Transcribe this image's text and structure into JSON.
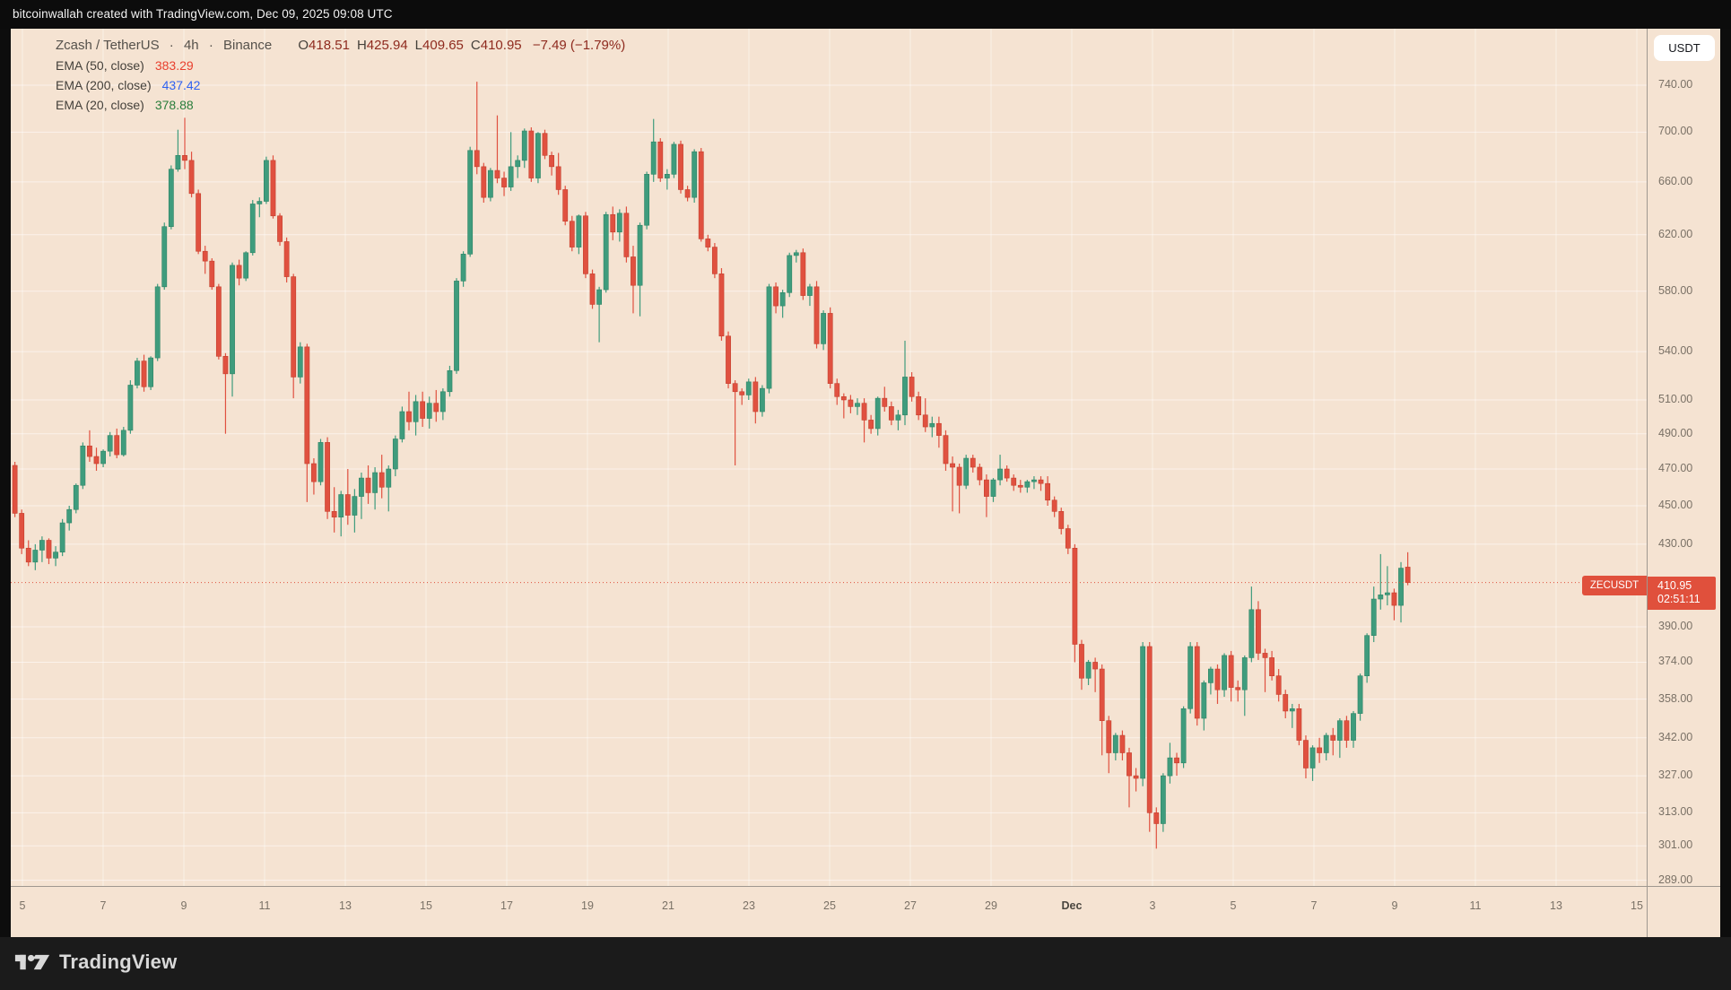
{
  "attribution": {
    "text": "bitcoinwallah created with TradingView.com, Dec 09, 2025 09:08 UTC"
  },
  "legend": {
    "symbol": "Zcash / TetherUS",
    "dot1": "·",
    "timeframe": "4h",
    "dot2": "·",
    "exchange": "Binance",
    "ohlc": {
      "o_label": "O",
      "o": "418.51",
      "h_label": "H",
      "h": "425.94",
      "l_label": "L",
      "l": "409.65",
      "c_label": "C",
      "c": "410.95"
    },
    "change": "−7.49 (−1.79%)",
    "indicators": [
      {
        "name": "EMA (50, close)",
        "value": "383.29",
        "color": "#e8402e"
      },
      {
        "name": "EMA (200, close)",
        "value": "437.42",
        "color": "#2f62f1"
      },
      {
        "name": "EMA (20, close)",
        "value": "378.88",
        "color": "#2a7d3b"
      }
    ]
  },
  "price_axis": {
    "currency_button": "USDT",
    "labels": [
      "740.00",
      "700.00",
      "660.00",
      "620.00",
      "580.00",
      "540.00",
      "510.00",
      "490.00",
      "470.00",
      "450.00",
      "430.00",
      "390.00",
      "374.00",
      "358.00",
      "342.00",
      "327.00",
      "313.00",
      "301.00",
      "289.00"
    ],
    "tag": {
      "symbol": "ZECUSDT",
      "price": "410.95",
      "countdown": "02:51:11",
      "color": "#e0503c"
    }
  },
  "time_axis": {
    "labels": [
      "5",
      "7",
      "9",
      "11",
      "13",
      "15",
      "17",
      "19",
      "21",
      "23",
      "25",
      "27",
      "29",
      "Dec",
      "3",
      "5",
      "7",
      "9",
      "11",
      "13",
      "15"
    ],
    "bold_index": 13
  },
  "footer": {
    "brand": "TradingView"
  },
  "chart_data": {
    "type": "candlestick",
    "title": "Zcash / TetherUS",
    "symbol": "ZECUSDT",
    "exchange": "Binance",
    "timeframe": "4h",
    "price_scale": "logarithmic",
    "ylim": [
      289,
      760
    ],
    "y_ticks": [
      740,
      700,
      660,
      620,
      580,
      540,
      510,
      490,
      470,
      450,
      430,
      390,
      374,
      358,
      342,
      327,
      313,
      301,
      289
    ],
    "x_tick_labels": [
      "5",
      "7",
      "9",
      "11",
      "13",
      "15",
      "17",
      "19",
      "21",
      "23",
      "25",
      "27",
      "29",
      "Dec",
      "3",
      "5",
      "7",
      "9",
      "11",
      "13",
      "15"
    ],
    "x_range_note": "Nov 4 to Dec 9, 2025, 4-hour bars",
    "current_price": 410.95,
    "current_bar": {
      "open": 418.51,
      "high": 425.94,
      "low": 409.65,
      "close": 410.95,
      "change": -7.49,
      "change_pct": -1.79,
      "countdown": "02:51:11"
    },
    "indicator_values": {
      "ema50": 383.29,
      "ema200": 437.42,
      "ema20": 378.88
    },
    "up_color": "#3f9c7d",
    "down_color": "#e05140",
    "candles": [
      [
        472,
        474,
        444,
        446
      ],
      [
        446,
        448,
        425,
        428
      ],
      [
        428,
        432,
        419,
        421
      ],
      [
        421,
        430,
        417,
        427
      ],
      [
        427,
        434,
        421,
        432
      ],
      [
        432,
        433,
        420,
        423
      ],
      [
        423,
        429,
        419,
        426
      ],
      [
        426,
        443,
        424,
        441
      ],
      [
        441,
        450,
        437,
        448
      ],
      [
        448,
        462,
        446,
        461
      ],
      [
        461,
        485,
        459,
        483
      ],
      [
        483,
        492,
        474,
        477
      ],
      [
        477,
        482,
        469,
        473
      ],
      [
        473,
        481,
        471,
        480
      ],
      [
        480,
        491,
        477,
        489
      ],
      [
        489,
        493,
        476,
        478
      ],
      [
        478,
        494,
        477,
        492
      ],
      [
        492,
        522,
        490,
        519
      ],
      [
        519,
        536,
        517,
        534
      ],
      [
        534,
        538,
        515,
        518
      ],
      [
        518,
        537,
        516,
        536
      ],
      [
        536,
        585,
        534,
        583
      ],
      [
        583,
        629,
        581,
        626
      ],
      [
        626,
        673,
        624,
        670
      ],
      [
        670,
        702,
        668,
        681
      ],
      [
        681,
        712,
        670,
        677
      ],
      [
        677,
        684,
        648,
        651
      ],
      [
        651,
        654,
        606,
        608
      ],
      [
        608,
        612,
        592,
        601
      ],
      [
        601,
        603,
        581,
        583
      ],
      [
        583,
        585,
        535,
        537
      ],
      [
        537,
        539,
        490,
        526
      ],
      [
        526,
        600,
        512,
        598
      ],
      [
        598,
        602,
        584,
        589
      ],
      [
        589,
        608,
        587,
        607
      ],
      [
        607,
        646,
        605,
        643
      ],
      [
        643,
        648,
        633,
        645
      ],
      [
        645,
        680,
        643,
        677
      ],
      [
        677,
        681,
        632,
        634
      ],
      [
        634,
        636,
        612,
        615
      ],
      [
        615,
        618,
        586,
        590
      ],
      [
        590,
        592,
        511,
        524
      ],
      [
        524,
        546,
        520,
        543
      ],
      [
        543,
        545,
        452,
        473
      ],
      [
        473,
        476,
        456,
        463
      ],
      [
        463,
        487,
        461,
        485
      ],
      [
        485,
        488,
        443,
        447
      ],
      [
        447,
        460,
        436,
        444
      ],
      [
        444,
        458,
        434,
        456
      ],
      [
        456,
        470,
        440,
        445
      ],
      [
        445,
        459,
        436,
        455
      ],
      [
        455,
        468,
        443,
        465
      ],
      [
        465,
        472,
        451,
        457
      ],
      [
        457,
        471,
        448,
        468
      ],
      [
        468,
        478,
        454,
        460
      ],
      [
        460,
        472,
        447,
        470
      ],
      [
        470,
        489,
        466,
        487
      ],
      [
        487,
        506,
        485,
        503
      ],
      [
        503,
        515,
        492,
        497
      ],
      [
        497,
        513,
        489,
        509
      ],
      [
        509,
        515,
        494,
        499
      ],
      [
        499,
        512,
        493,
        508
      ],
      [
        508,
        516,
        497,
        503
      ],
      [
        503,
        517,
        498,
        515
      ],
      [
        515,
        531,
        512,
        528
      ],
      [
        528,
        589,
        526,
        587
      ],
      [
        587,
        608,
        583,
        606
      ],
      [
        606,
        688,
        604,
        685
      ],
      [
        685,
        743,
        666,
        672
      ],
      [
        672,
        675,
        644,
        648
      ],
      [
        648,
        671,
        645,
        669
      ],
      [
        669,
        714,
        659,
        663
      ],
      [
        663,
        668,
        649,
        656
      ],
      [
        656,
        700,
        653,
        672
      ],
      [
        672,
        681,
        663,
        677
      ],
      [
        677,
        703,
        671,
        701
      ],
      [
        701,
        704,
        660,
        663
      ],
      [
        663,
        700,
        659,
        699
      ],
      [
        699,
        702,
        678,
        681
      ],
      [
        681,
        684,
        665,
        672
      ],
      [
        672,
        683,
        650,
        654
      ],
      [
        654,
        657,
        627,
        630
      ],
      [
        630,
        634,
        608,
        611
      ],
      [
        611,
        635,
        606,
        634
      ],
      [
        634,
        637,
        589,
        592
      ],
      [
        592,
        595,
        568,
        571
      ],
      [
        571,
        583,
        546,
        581
      ],
      [
        581,
        637,
        579,
        635
      ],
      [
        635,
        641,
        616,
        622
      ],
      [
        622,
        639,
        615,
        636
      ],
      [
        636,
        641,
        600,
        604
      ],
      [
        604,
        612,
        565,
        584
      ],
      [
        584,
        629,
        563,
        627
      ],
      [
        627,
        668,
        624,
        666
      ],
      [
        666,
        711,
        660,
        692
      ],
      [
        692,
        695,
        660,
        663
      ],
      [
        663,
        670,
        654,
        666
      ],
      [
        666,
        692,
        663,
        690
      ],
      [
        690,
        693,
        651,
        654
      ],
      [
        654,
        657,
        645,
        648
      ],
      [
        648,
        686,
        644,
        684
      ],
      [
        684,
        687,
        615,
        617
      ],
      [
        617,
        620,
        608,
        611
      ],
      [
        611,
        614,
        589,
        592
      ],
      [
        592,
        596,
        547,
        550
      ],
      [
        550,
        553,
        517,
        520
      ],
      [
        520,
        522,
        472,
        515
      ],
      [
        515,
        517,
        507,
        513
      ],
      [
        513,
        523,
        510,
        521
      ],
      [
        521,
        524,
        496,
        503
      ],
      [
        503,
        519,
        500,
        517
      ],
      [
        517,
        585,
        514,
        583
      ],
      [
        583,
        586,
        565,
        570
      ],
      [
        570,
        581,
        562,
        579
      ],
      [
        579,
        607,
        576,
        605
      ],
      [
        605,
        609,
        600,
        607
      ],
      [
        607,
        610,
        574,
        577
      ],
      [
        577,
        585,
        570,
        583
      ],
      [
        583,
        587,
        542,
        545
      ],
      [
        545,
        567,
        541,
        565
      ],
      [
        565,
        569,
        517,
        520
      ],
      [
        520,
        523,
        507,
        512
      ],
      [
        512,
        514,
        499,
        510
      ],
      [
        510,
        513,
        502,
        506
      ],
      [
        506,
        511,
        501,
        508
      ],
      [
        508,
        511,
        485,
        498
      ],
      [
        498,
        501,
        490,
        493
      ],
      [
        493,
        512,
        489,
        511
      ],
      [
        511,
        518,
        503,
        506
      ],
      [
        506,
        509,
        495,
        498
      ],
      [
        498,
        504,
        492,
        501
      ],
      [
        501,
        547,
        495,
        524
      ],
      [
        524,
        527,
        509,
        512
      ],
      [
        512,
        515,
        498,
        501
      ],
      [
        501,
        511,
        491,
        494
      ],
      [
        494,
        500,
        488,
        496
      ],
      [
        496,
        500,
        482,
        489
      ],
      [
        489,
        492,
        469,
        473
      ],
      [
        473,
        477,
        447,
        471
      ],
      [
        471,
        473,
        446,
        461
      ],
      [
        461,
        478,
        459,
        476
      ],
      [
        476,
        478,
        468,
        471
      ],
      [
        471,
        473,
        461,
        464
      ],
      [
        464,
        467,
        444,
        455
      ],
      [
        455,
        465,
        452,
        464
      ],
      [
        464,
        478,
        461,
        470
      ],
      [
        470,
        472,
        463,
        465
      ],
      [
        465,
        467,
        458,
        461
      ],
      [
        461,
        464,
        457,
        460
      ],
      [
        460,
        464,
        457,
        463
      ],
      [
        463,
        466,
        459,
        464
      ],
      [
        464,
        466,
        458,
        462
      ],
      [
        462,
        466,
        450,
        453
      ],
      [
        453,
        455,
        444,
        447
      ],
      [
        447,
        449,
        435,
        438
      ],
      [
        438,
        440,
        425,
        428
      ],
      [
        428,
        430,
        374,
        382
      ],
      [
        382,
        384,
        362,
        367
      ],
      [
        367,
        375,
        364,
        374
      ],
      [
        374,
        376,
        361,
        371
      ],
      [
        371,
        373,
        335,
        349
      ],
      [
        349,
        351,
        328,
        336
      ],
      [
        336,
        344,
        333,
        343
      ],
      [
        343,
        345,
        333,
        336
      ],
      [
        336,
        338,
        315,
        327
      ],
      [
        327,
        330,
        321,
        326
      ],
      [
        326,
        383,
        323,
        381
      ],
      [
        381,
        383,
        306,
        313
      ],
      [
        313,
        315,
        300,
        309
      ],
      [
        309,
        328,
        306,
        327
      ],
      [
        327,
        340,
        324,
        334
      ],
      [
        334,
        336,
        327,
        332
      ],
      [
        332,
        355,
        330,
        354
      ],
      [
        354,
        383,
        352,
        381
      ],
      [
        381,
        383,
        347,
        350
      ],
      [
        350,
        366,
        345,
        365
      ],
      [
        365,
        372,
        360,
        371
      ],
      [
        371,
        373,
        356,
        362
      ],
      [
        362,
        378,
        359,
        377
      ],
      [
        377,
        379,
        357,
        363
      ],
      [
        363,
        366,
        357,
        362
      ],
      [
        362,
        377,
        351,
        376
      ],
      [
        376,
        409,
        374,
        398
      ],
      [
        398,
        402,
        375,
        378
      ],
      [
        378,
        380,
        361,
        376
      ],
      [
        376,
        379,
        366,
        368
      ],
      [
        368,
        371,
        357,
        360
      ],
      [
        360,
        362,
        350,
        353
      ],
      [
        353,
        356,
        346,
        354
      ],
      [
        354,
        356,
        339,
        341
      ],
      [
        341,
        343,
        326,
        330
      ],
      [
        330,
        339,
        325,
        338
      ],
      [
        338,
        342,
        332,
        336
      ],
      [
        336,
        344,
        333,
        343
      ],
      [
        343,
        346,
        335,
        341
      ],
      [
        341,
        350,
        334,
        349
      ],
      [
        349,
        351,
        338,
        341
      ],
      [
        341,
        353,
        338,
        352
      ],
      [
        352,
        369,
        349,
        368
      ],
      [
        368,
        387,
        365,
        386
      ],
      [
        386,
        409,
        383,
        403
      ],
      [
        403,
        425,
        398,
        405
      ],
      [
        405,
        419,
        400,
        406
      ],
      [
        406,
        408,
        393,
        400
      ],
      [
        400,
        421,
        392,
        418
      ],
      [
        418.51,
        425.94,
        409.65,
        410.95
      ]
    ]
  }
}
